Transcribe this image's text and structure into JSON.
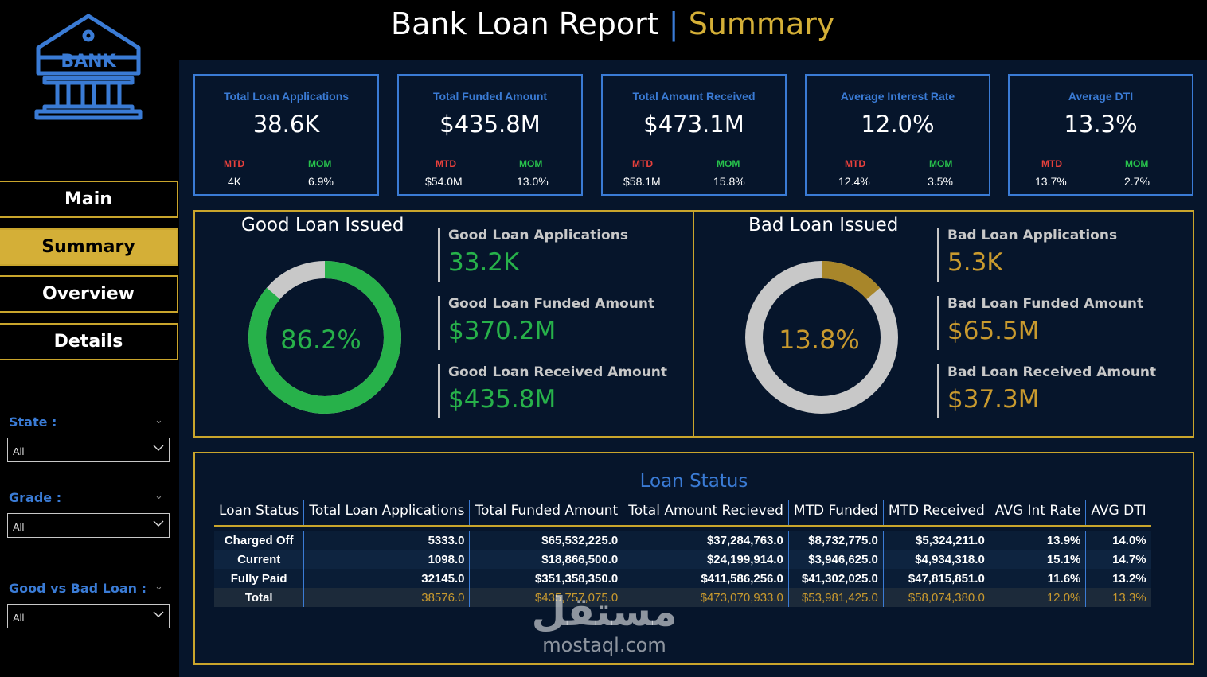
{
  "header": {
    "title": "Bank Loan Report",
    "separator": "|",
    "subtitle": "Summary"
  },
  "logo": {
    "text": "BANK",
    "icon": "bank-icon",
    "color": "#3a7bd5"
  },
  "nav": [
    {
      "label": "Main",
      "active": false
    },
    {
      "label": "Summary",
      "active": true
    },
    {
      "label": "Overview",
      "active": false
    },
    {
      "label": "Details",
      "active": false
    }
  ],
  "filters": [
    {
      "label": "State :",
      "value": "All"
    },
    {
      "label": "Grade :",
      "value": "All"
    },
    {
      "label": "Good vs Bad Loan :",
      "value": "All"
    }
  ],
  "kpis": [
    {
      "title": "Total Loan Applications",
      "value": "38.6K",
      "mtd_label": "MTD",
      "mtd": "4K",
      "mom_label": "MOM",
      "mom": "6.9%"
    },
    {
      "title": "Total Funded Amount",
      "value": "$435.8M",
      "mtd_label": "MTD",
      "mtd": "$54.0M",
      "mom_label": "MOM",
      "mom": "13.0%"
    },
    {
      "title": "Total Amount Received",
      "value": "$473.1M",
      "mtd_label": "MTD",
      "mtd": "$58.1M",
      "mom_label": "MOM",
      "mom": "15.8%"
    },
    {
      "title": "Average Interest Rate",
      "value": "12.0%",
      "mtd_label": "MTD",
      "mtd": "12.4%",
      "mom_label": "MOM",
      "mom": "3.5%"
    },
    {
      "title": "Average DTI",
      "value": "13.3%",
      "mtd_label": "MTD",
      "mtd": "13.7%",
      "mom_label": "MOM",
      "mom": "2.7%"
    }
  ],
  "good_loan": {
    "title": "Good Loan Issued",
    "percent_label": "86.2%",
    "percent": 0.862,
    "color": "#27b14a",
    "metrics": [
      {
        "label": "Good Loan Applications",
        "value": "33.2K"
      },
      {
        "label": "Good Loan Funded Amount",
        "value": "$370.2M"
      },
      {
        "label": "Good Loan Received Amount",
        "value": "$435.8M"
      }
    ]
  },
  "bad_loan": {
    "title": "Bad Loan Issued",
    "percent_label": "13.8%",
    "percent": 0.138,
    "color": "#a8862a",
    "metrics": [
      {
        "label": "Bad Loan Applications",
        "value": "5.3K"
      },
      {
        "label": "Bad Loan Funded Amount",
        "value": "$65.5M"
      },
      {
        "label": "Bad Loan Received Amount",
        "value": "$37.3M"
      }
    ]
  },
  "loan_status": {
    "title": "Loan Status",
    "columns": [
      "Loan Status",
      "Total Loan Applications",
      "Total Funded Amount",
      "Total Amount Recieved",
      "MTD Funded",
      "MTD Received",
      "AVG Int Rate",
      "AVG DTI"
    ],
    "rows": [
      [
        "Charged Off",
        "5333.0",
        "$65,532,225.0",
        "$37,284,763.0",
        "$8,732,775.0",
        "$5,324,211.0",
        "13.9%",
        "14.0%"
      ],
      [
        "Current",
        "1098.0",
        "$18,866,500.0",
        "$24,199,914.0",
        "$3,946,625.0",
        "$4,934,318.0",
        "15.1%",
        "14.7%"
      ],
      [
        "Fully Paid",
        "32145.0",
        "$351,358,350.0",
        "$411,586,256.0",
        "$41,302,025.0",
        "$47,815,851.0",
        "11.6%",
        "13.2%"
      ]
    ],
    "total": [
      "Total",
      "38576.0",
      "$435,757,075.0",
      "$473,070,933.0",
      "$53,981,425.0",
      "$58,074,380.0",
      "12.0%",
      "13.3%"
    ]
  },
  "watermark": {
    "arabic": "مستقل",
    "latin": "mostaql.com"
  }
}
